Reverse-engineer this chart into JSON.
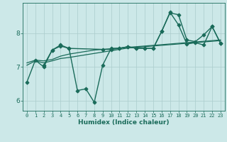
{
  "xlabel": "Humidex (Indice chaleur)",
  "bg_color": "#cce8e8",
  "line_color": "#1a6b5a",
  "grid_color": "#aacccc",
  "xlim": [
    -0.5,
    23.5
  ],
  "ylim": [
    5.7,
    8.9
  ],
  "xticks": [
    0,
    1,
    2,
    3,
    4,
    5,
    6,
    7,
    8,
    9,
    10,
    11,
    12,
    13,
    14,
    15,
    16,
    17,
    18,
    19,
    20,
    21,
    22,
    23
  ],
  "yticks": [
    6,
    7,
    8
  ],
  "series": [
    {
      "x": [
        0,
        1,
        2,
        3,
        4,
        5,
        6,
        7,
        8,
        9,
        10,
        11,
        12,
        13,
        14,
        15,
        16,
        17,
        18,
        19,
        20,
        21,
        22,
        23
      ],
      "y": [
        6.55,
        7.2,
        7.0,
        7.5,
        7.65,
        7.55,
        6.3,
        6.35,
        5.95,
        7.05,
        7.55,
        7.55,
        7.6,
        7.55,
        7.55,
        7.55,
        8.05,
        8.6,
        8.55,
        7.8,
        7.75,
        7.95,
        8.2,
        7.7
      ],
      "marker": "D",
      "markersize": 2.5,
      "linewidth": 1.0
    },
    {
      "x": [
        0,
        1,
        2,
        3,
        4,
        5,
        6,
        7,
        8,
        9,
        10,
        11,
        12,
        13,
        14,
        15,
        16,
        17,
        18,
        19,
        20,
        21,
        22,
        23
      ],
      "y": [
        7.05,
        7.18,
        7.12,
        7.18,
        7.25,
        7.28,
        7.32,
        7.36,
        7.4,
        7.44,
        7.48,
        7.52,
        7.56,
        7.58,
        7.6,
        7.62,
        7.64,
        7.66,
        7.68,
        7.7,
        7.72,
        7.74,
        7.76,
        7.78
      ],
      "marker": null,
      "markersize": 0,
      "linewidth": 0.9
    },
    {
      "x": [
        0,
        1,
        2,
        3,
        4,
        5,
        6,
        7,
        8,
        9,
        10,
        11,
        12,
        13,
        14,
        15,
        16,
        17,
        18,
        19,
        20,
        21,
        22,
        23
      ],
      "y": [
        7.12,
        7.2,
        7.18,
        7.22,
        7.32,
        7.38,
        7.42,
        7.46,
        7.5,
        7.52,
        7.54,
        7.56,
        7.58,
        7.6,
        7.62,
        7.64,
        7.66,
        7.68,
        7.7,
        7.72,
        7.74,
        7.76,
        7.78,
        7.8
      ],
      "marker": null,
      "markersize": 0,
      "linewidth": 0.9
    },
    {
      "x": [
        2,
        3,
        4,
        5,
        9,
        10,
        11,
        12,
        13,
        14,
        15,
        16,
        17,
        18,
        19,
        20,
        21,
        22,
        23
      ],
      "y": [
        7.05,
        7.5,
        7.62,
        7.55,
        7.52,
        7.52,
        7.55,
        7.6,
        7.55,
        7.55,
        7.55,
        8.05,
        8.62,
        8.25,
        7.68,
        7.72,
        7.65,
        8.2,
        7.7
      ],
      "marker": "D",
      "markersize": 2.5,
      "linewidth": 1.0
    }
  ]
}
